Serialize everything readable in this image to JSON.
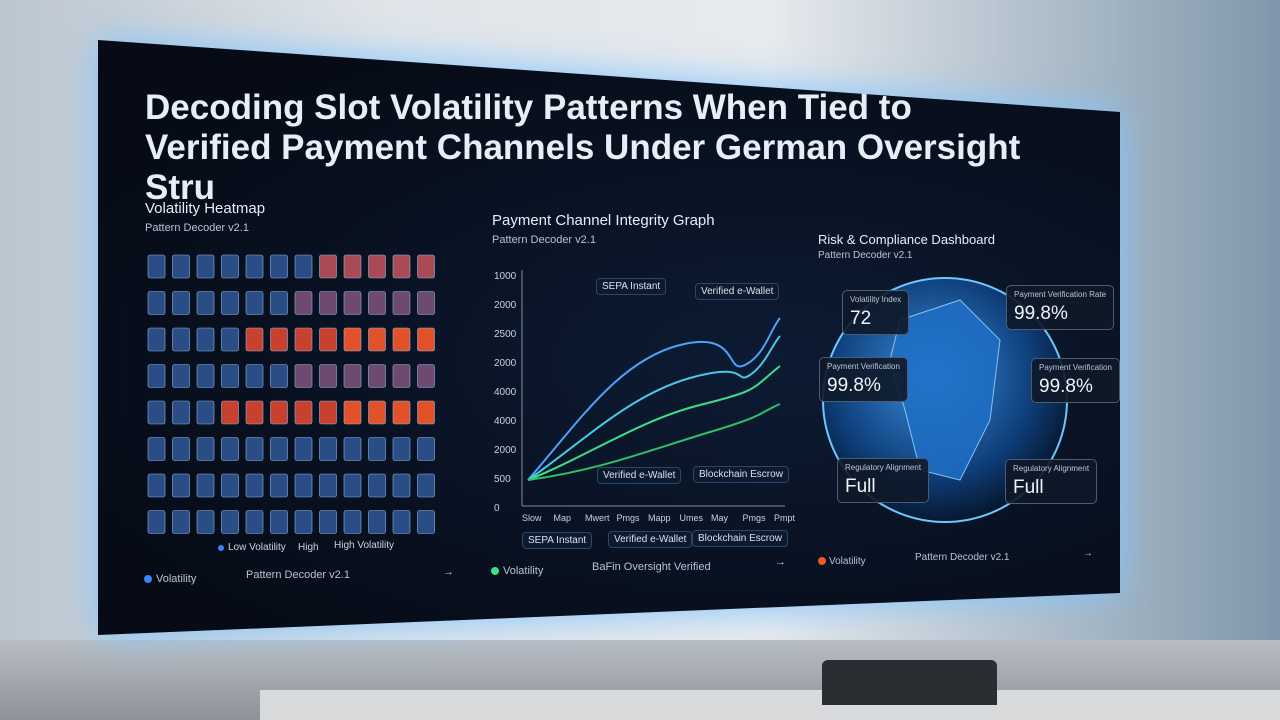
{
  "title": "Decoding Slot Volatility Patterns When Tied to Verified Payment Channels Under German Oversight Stru",
  "heatmap": {
    "title": "Volatility Heatmap",
    "subtitle": "Pattern Decoder v2.1",
    "legend": [
      "Low Volatility",
      "High",
      "High Volatility"
    ],
    "footer": {
      "tag": "Volatility",
      "label": "Pattern Decoder v2.1",
      "arrow": "→"
    }
  },
  "graph": {
    "title": "Payment Channel Integrity Graph",
    "subtitle": "Pattern Decoder v2.1",
    "tags": [
      "SEPA Instant",
      "Verified e-Wallet",
      "Verified e-Wallet",
      "Blockchain Escrow"
    ],
    "y_labels": [
      "1000",
      "2000",
      "2500",
      "2000",
      "4000",
      "4000",
      "2000",
      "500",
      "0"
    ],
    "x_labels": [
      "Slow",
      "Map",
      "Mwert",
      "Pmgs",
      "Mapp",
      "Umes",
      "May",
      "Pmgs",
      "Pmpt"
    ],
    "legend": [
      "SEPA Instant",
      "Verified e-Wallet",
      "Blockchain Escrow"
    ],
    "footer": {
      "tag": "Volatility",
      "label": "BaFin Oversight Verified",
      "arrow": "→"
    }
  },
  "dashboard": {
    "title": "Risk & Compliance Dashboard",
    "subtitle": "Pattern Decoder v2.1",
    "cards": [
      {
        "label": "Volatility Index",
        "value": "72"
      },
      {
        "label": "Payment Verification Rate",
        "value": "99.8%"
      },
      {
        "label": "Payment Verification",
        "value": "99.8%"
      },
      {
        "label": "Payment Verification",
        "value": "99.8%"
      },
      {
        "label": "Regulatory Alignment",
        "value": "Full"
      },
      {
        "label": "Regulatory Alignment",
        "value": "Full"
      }
    ],
    "footer": {
      "tag": "Volatility",
      "label": "Pattern Decoder v2.1",
      "arrow": "→"
    }
  }
}
